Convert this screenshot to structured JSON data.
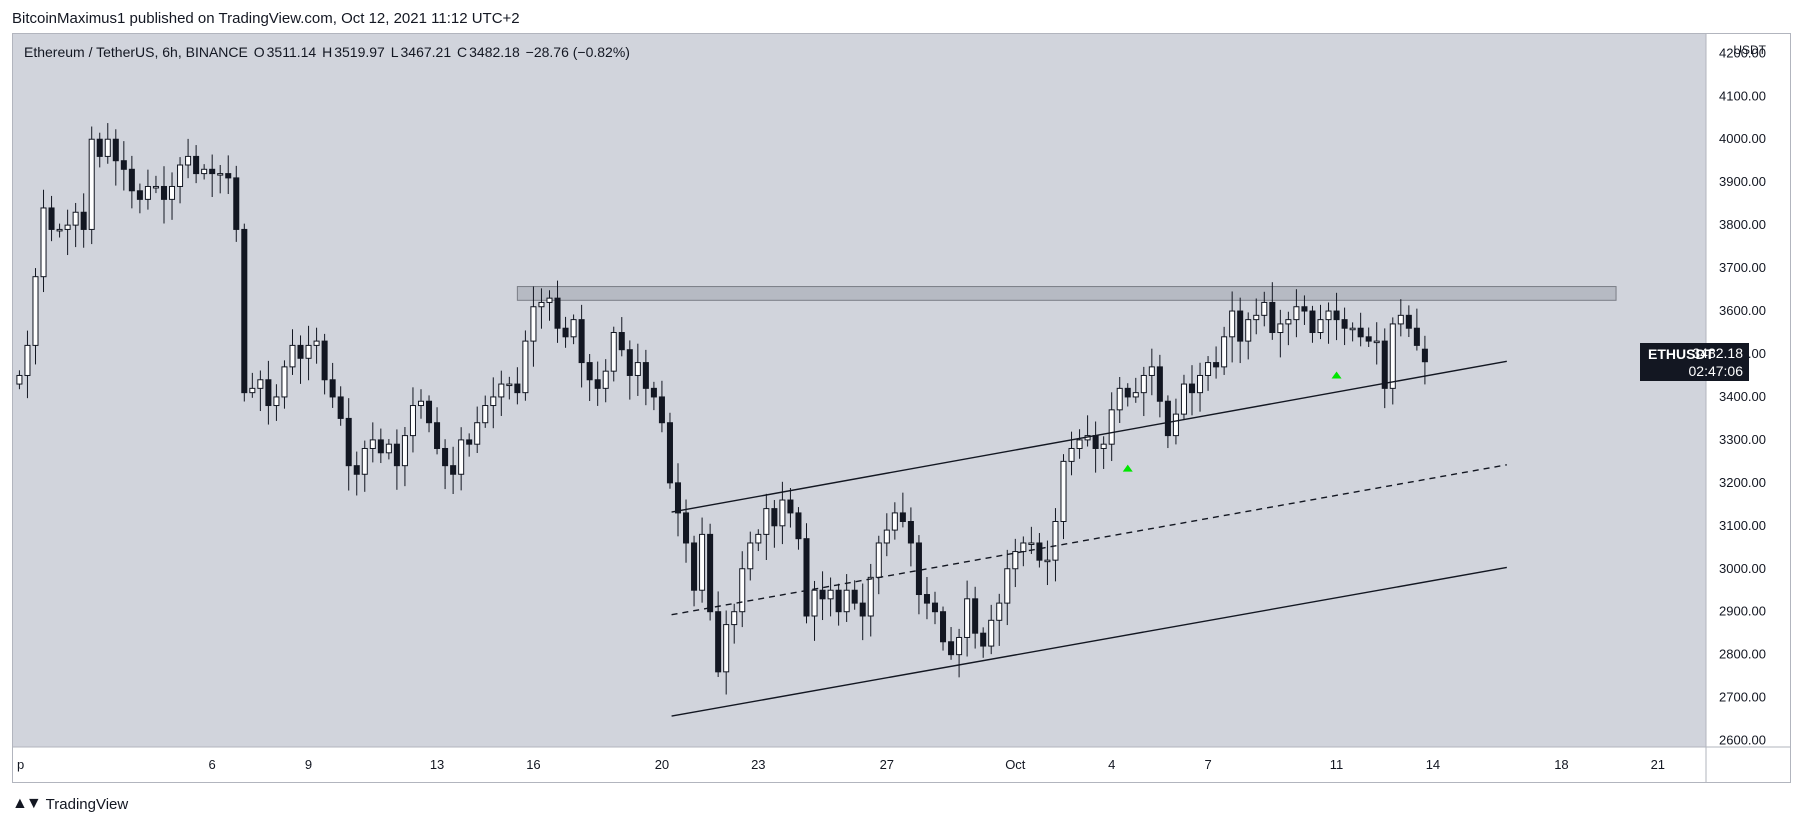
{
  "header": {
    "published_text": "BitcoinMaximus1 published on TradingView.com, Oct 12, 2021 11:12 UTC+2"
  },
  "legend": {
    "symbol_text": "Ethereum / TetherUS, 6h, BINANCE",
    "open_key": "O",
    "open": "3511.14",
    "high_key": "H",
    "high": "3519.97",
    "low_key": "L",
    "low": "3467.21",
    "close_key": "C",
    "close": "3482.18",
    "change": "−28.76 (−0.82%)"
  },
  "price_label": {
    "symbol": "ETHUSDT",
    "price": "3482.18",
    "countdown": "02:47:06"
  },
  "footer": {
    "brand": "TradingView",
    "logo_icon": "tradingview-logo-icon"
  },
  "colors": {
    "background": "#d1d4dc",
    "up_candle": "#ffffff",
    "down_candle": "#131722",
    "resistance_zone": "#b2b5be",
    "marker": "#00e600"
  },
  "chart_data": {
    "type": "candlestick",
    "symbol": "ETHUSDT",
    "timeframe": "6h",
    "y_axis": {
      "unit_label": "USDT",
      "ticks": [
        "4200.00",
        "4100.00",
        "4000.00",
        "3900.00",
        "3800.00",
        "3700.00",
        "3600.00",
        "3500.00",
        "3400.00",
        "3300.00",
        "3200.00",
        "3100.00",
        "3000.00",
        "2900.00",
        "2800.00",
        "2700.00",
        "2600.00"
      ],
      "ylim": [
        2585,
        4245
      ]
    },
    "x_axis": {
      "ticks": [
        {
          "label": "p",
          "day": -0.2
        },
        {
          "label": "6",
          "day": 6
        },
        {
          "label": "9",
          "day": 9
        },
        {
          "label": "13",
          "day": 13
        },
        {
          "label": "16",
          "day": 16
        },
        {
          "label": "20",
          "day": 20
        },
        {
          "label": "23",
          "day": 23
        },
        {
          "label": "27",
          "day": 27
        },
        {
          "label": "Oct",
          "day": 31
        },
        {
          "label": "4",
          "day": 34
        },
        {
          "label": "7",
          "day": 37
        },
        {
          "label": "11",
          "day": 41
        },
        {
          "label": "14",
          "day": 44
        },
        {
          "label": "18",
          "day": 48
        },
        {
          "label": "21",
          "day": 51
        }
      ],
      "xlim": [
        -0.2,
        52.5
      ]
    },
    "closes": [
      3450,
      3520,
      3680,
      3840,
      3790,
      3790,
      3800,
      3830,
      3790,
      4000,
      3960,
      4000,
      3950,
      3930,
      3880,
      3860,
      3890,
      3890,
      3860,
      3890,
      3940,
      3960,
      3920,
      3930,
      3920,
      3920,
      3910,
      3790,
      3410,
      3420,
      3440,
      3380,
      3400,
      3470,
      3520,
      3490,
      3520,
      3530,
      3440,
      3400,
      3350,
      3240,
      3220,
      3280,
      3300,
      3270,
      3290,
      3240,
      3310,
      3380,
      3390,
      3340,
      3280,
      3240,
      3220,
      3300,
      3290,
      3340,
      3380,
      3400,
      3430,
      3430,
      3410,
      3530,
      3610,
      3620,
      3630,
      3560,
      3540,
      3580,
      3480,
      3440,
      3420,
      3460,
      3550,
      3510,
      3450,
      3480,
      3420,
      3400,
      3340,
      3200,
      3130,
      3060,
      2950,
      3080,
      2900,
      2760,
      2870,
      2900,
      3000,
      3060,
      3080,
      3140,
      3100,
      3160,
      3130,
      3070,
      2890,
      2950,
      2930,
      2950,
      2900,
      2950,
      2920,
      2890,
      2980,
      3060,
      3090,
      3130,
      3110,
      3060,
      2940,
      2920,
      2900,
      2830,
      2800,
      2840,
      2930,
      2850,
      2820,
      2880,
      2920,
      3000,
      3040,
      3060,
      3060,
      3020,
      3020,
      3110,
      3250,
      3280,
      3300,
      3310,
      3280,
      3290,
      3370,
      3420,
      3400,
      3410,
      3450,
      3470,
      3390,
      3310,
      3360,
      3430,
      3410,
      3450,
      3480,
      3470,
      3540,
      3600,
      3530,
      3580,
      3590,
      3620,
      3550,
      3570,
      3580,
      3610,
      3600,
      3550,
      3580,
      3600,
      3580,
      3560,
      3560,
      3540,
      3530,
      3530,
      3420,
      3570,
      3590,
      3560,
      3520,
      3482
    ],
    "close_last": 3482.18,
    "channel": {
      "upper": {
        "from": {
          "day": 20.3,
          "price": 3132
        },
        "to": {
          "day": 46.3,
          "price": 3483
        }
      },
      "middle_dashed": {
        "from": {
          "day": 20.3,
          "price": 2893
        },
        "to": {
          "day": 46.3,
          "price": 3242
        }
      },
      "lower": {
        "from": {
          "day": 20.3,
          "price": 2657
        },
        "to": {
          "day": 46.3,
          "price": 3003
        }
      }
    },
    "resistance_zone": {
      "from_day": 15.5,
      "to_day": 49.7,
      "low": 3625,
      "high": 3657
    },
    "markers": [
      {
        "day": 34.5,
        "price": 3233
      },
      {
        "day": 41.0,
        "price": 3450
      }
    ]
  }
}
